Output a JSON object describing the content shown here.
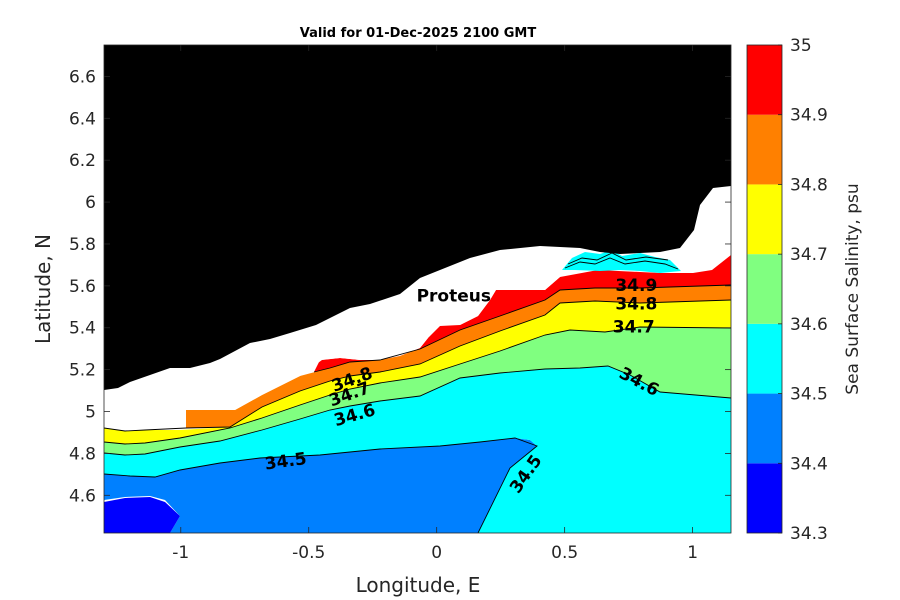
{
  "chart_data": {
    "type": "contourf",
    "title": "Valid for 01-Dec-2025 2100 GMT",
    "xlabel": "Longitude, E",
    "ylabel": "Latitude, N",
    "xlim": [
      -1.3,
      1.15
    ],
    "ylim": [
      4.42,
      6.75
    ],
    "xticks": [
      -1,
      -0.5,
      0,
      0.5,
      1
    ],
    "xtick_labels": [
      "-1",
      "-0.5",
      "0",
      "0.5",
      "1"
    ],
    "yticks": [
      4.6,
      4.8,
      5,
      5.2,
      5.4,
      5.6,
      5.8,
      6,
      6.2,
      6.4,
      6.6
    ],
    "ytick_labels": [
      "4.6",
      "4.8",
      "5",
      "5.2",
      "5.4",
      "5.6",
      "5.8",
      "6",
      "6.2",
      "6.4",
      "6.6"
    ],
    "colorbar": {
      "label": "Sea Surface Salinity, psu",
      "levels": [
        34.3,
        34.4,
        34.5,
        34.6,
        34.7,
        34.8,
        34.9,
        35
      ],
      "level_labels": [
        "34.3",
        "34.4",
        "34.5",
        "34.6",
        "34.7",
        "34.8",
        "34.9",
        "35"
      ],
      "colors": [
        "#0000ff",
        "#0080ff",
        "#00ffff",
        "#80ff80",
        "#ffff00",
        "#ff8000",
        "#ff0000"
      ]
    },
    "land_color": "#000000",
    "no_data_color": "#ffffff",
    "contour_labels": [
      {
        "text": "34.9",
        "lon": 0.78,
        "lat": 5.6,
        "angle": 0
      },
      {
        "text": "34.8",
        "lon": 0.78,
        "lat": 5.51,
        "angle": 0
      },
      {
        "text": "34.7",
        "lon": 0.77,
        "lat": 5.4,
        "angle": 0
      },
      {
        "text": "34.6",
        "lon": 0.79,
        "lat": 5.14,
        "angle": 28
      },
      {
        "text": "34.8",
        "lon": -0.33,
        "lat": 5.15,
        "angle": -20
      },
      {
        "text": "34.7",
        "lon": -0.34,
        "lat": 5.08,
        "angle": -20
      },
      {
        "text": "34.6",
        "lon": -0.32,
        "lat": 4.98,
        "angle": -16
      },
      {
        "text": "34.5",
        "lon": -0.59,
        "lat": 4.76,
        "angle": -8
      },
      {
        "text": "34.5",
        "lon": 0.35,
        "lat": 4.7,
        "angle": -55
      }
    ],
    "station": {
      "name": "Proteus",
      "lon": 0.02,
      "lat": 5.63
    }
  }
}
